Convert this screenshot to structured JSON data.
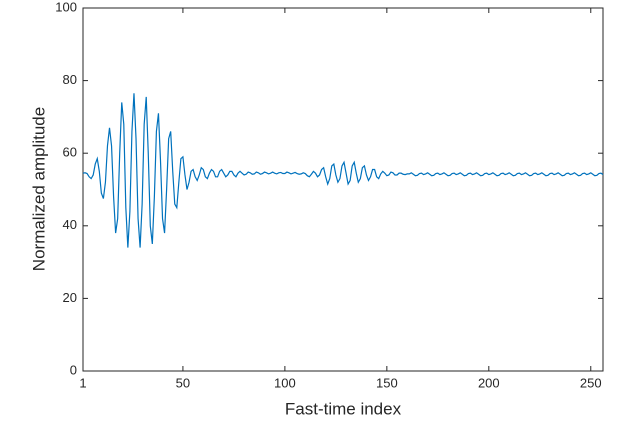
{
  "chart_data": {
    "type": "line",
    "x_label": "Fast-time index",
    "y_label": "Normalized amplitude",
    "color": "#0072bd",
    "xlim": [
      1,
      256
    ],
    "ylim": [
      0,
      100
    ],
    "xticks": [
      1,
      50,
      100,
      150,
      200,
      250
    ],
    "yticks": [
      0,
      20,
      40,
      60,
      80,
      100
    ],
    "x": [
      1,
      2,
      3,
      4,
      5,
      6,
      7,
      8,
      9,
      10,
      11,
      12,
      13,
      14,
      15,
      16,
      17,
      18,
      19,
      20,
      21,
      22,
      23,
      24,
      25,
      26,
      27,
      28,
      29,
      30,
      31,
      32,
      33,
      34,
      35,
      36,
      37,
      38,
      39,
      40,
      41,
      42,
      43,
      44,
      45,
      46,
      47,
      48,
      49,
      50,
      51,
      52,
      53,
      54,
      55,
      56,
      57,
      58,
      59,
      60,
      61,
      62,
      63,
      64,
      65,
      66,
      67,
      68,
      69,
      70,
      71,
      72,
      73,
      74,
      75,
      76,
      77,
      78,
      79,
      80,
      81,
      82,
      83,
      84,
      85,
      86,
      87,
      88,
      89,
      90,
      91,
      92,
      93,
      94,
      95,
      96,
      97,
      98,
      99,
      100,
      101,
      102,
      103,
      104,
      105,
      106,
      107,
      108,
      109,
      110,
      111,
      112,
      113,
      114,
      115,
      116,
      117,
      118,
      119,
      120,
      121,
      122,
      123,
      124,
      125,
      126,
      127,
      128,
      129,
      130,
      131,
      132,
      133,
      134,
      135,
      136,
      137,
      138,
      139,
      140,
      141,
      142,
      143,
      144,
      145,
      146,
      147,
      148,
      149,
      150,
      151,
      152,
      153,
      154,
      155,
      156,
      157,
      158,
      159,
      160,
      161,
      162,
      163,
      164,
      165,
      166,
      167,
      168,
      169,
      170,
      171,
      172,
      173,
      174,
      175,
      176,
      177,
      178,
      179,
      180,
      181,
      182,
      183,
      184,
      185,
      186,
      187,
      188,
      189,
      190,
      191,
      192,
      193,
      194,
      195,
      196,
      197,
      198,
      199,
      200,
      201,
      202,
      203,
      204,
      205,
      206,
      207,
      208,
      209,
      210,
      211,
      212,
      213,
      214,
      215,
      216,
      217,
      218,
      219,
      220,
      221,
      222,
      223,
      224,
      225,
      226,
      227,
      228,
      229,
      230,
      231,
      232,
      233,
      234,
      235,
      236,
      237,
      238,
      239,
      240,
      241,
      242,
      243,
      244,
      245,
      246,
      247,
      248,
      249,
      250,
      251,
      252,
      253,
      254,
      255,
      256
    ],
    "values": [
      54.5,
      54.6,
      54.4,
      53.5,
      53,
      54,
      57,
      58.5,
      55,
      49,
      47.5,
      52,
      62,
      67,
      62,
      48,
      38,
      42,
      60,
      74,
      68,
      45,
      34,
      44,
      66,
      76.5,
      64,
      42,
      34,
      46,
      68,
      75.5,
      60,
      40,
      35,
      48,
      66,
      71,
      58,
      42,
      38,
      50,
      64,
      66,
      55,
      46,
      45,
      52,
      58.5,
      59,
      54,
      50,
      52,
      55,
      55.5,
      53.5,
      52.5,
      54,
      56,
      55.5,
      53.5,
      53,
      54.5,
      55.5,
      55,
      53.5,
      53.5,
      55,
      55.5,
      54.5,
      53.5,
      54,
      55,
      55,
      54,
      53.5,
      54.5,
      55,
      54.5,
      54,
      54.2,
      54.8,
      54.6,
      54.2,
      54.3,
      54.8,
      54.6,
      54.2,
      54.4,
      54.8,
      54.6,
      54.3,
      54.5,
      54.8,
      54.5,
      54.3,
      54.6,
      54.7,
      54.4,
      54.4,
      54.8,
      54.6,
      54.3,
      54.5,
      54.7,
      54.4,
      54.2,
      54.3,
      54.6,
      54.4,
      53.8,
      53.5,
      54.2,
      55,
      54.5,
      53.5,
      54,
      55.5,
      56,
      53.5,
      51.5,
      53,
      56.5,
      57,
      54,
      52,
      53,
      56.5,
      57.5,
      54.5,
      51.5,
      52.5,
      56.5,
      57.5,
      54.5,
      52,
      53,
      56,
      56.5,
      54,
      52.5,
      53.5,
      55.5,
      55.5,
      53.5,
      53,
      54.3,
      55,
      54.5,
      53.8,
      54,
      54.8,
      54.6,
      54,
      54,
      54.5,
      54.5,
      54.2,
      54.1,
      54.3,
      54.3,
      54.6,
      54.2,
      53.8,
      53.9,
      54.4,
      54.5,
      54.1,
      54.3,
      54.6,
      54.2,
      53.8,
      53.9,
      54.4,
      54.5,
      54.1,
      54.3,
      54.6,
      54.2,
      53.8,
      53.9,
      54.4,
      54.5,
      54.1,
      54.3,
      54.6,
      54.2,
      53.8,
      53.9,
      54.4,
      54.5,
      54.1,
      54.3,
      54.6,
      54.2,
      53.8,
      53.9,
      54.4,
      54.5,
      54.1,
      54.3,
      54.6,
      54.2,
      53.8,
      53.9,
      54.4,
      54.5,
      54.1,
      54.3,
      54.6,
      54.2,
      53.8,
      53.9,
      54.4,
      54.5,
      54.1,
      54.3,
      54.6,
      54.2,
      53.8,
      53.9,
      54.4,
      54.5,
      54.1,
      54.3,
      54.6,
      54.2,
      53.8,
      53.9,
      54.4,
      54.5,
      54.1,
      54.3,
      54.6,
      54.2,
      53.8,
      53.9,
      54.4,
      54.5,
      54.1,
      54.3,
      54.6,
      54.2,
      53.8,
      53.9,
      54.4,
      54.5,
      54.1,
      54.3,
      54.6,
      54.2,
      53.8,
      53.9,
      54.4,
      54.5,
      54.1
    ]
  }
}
